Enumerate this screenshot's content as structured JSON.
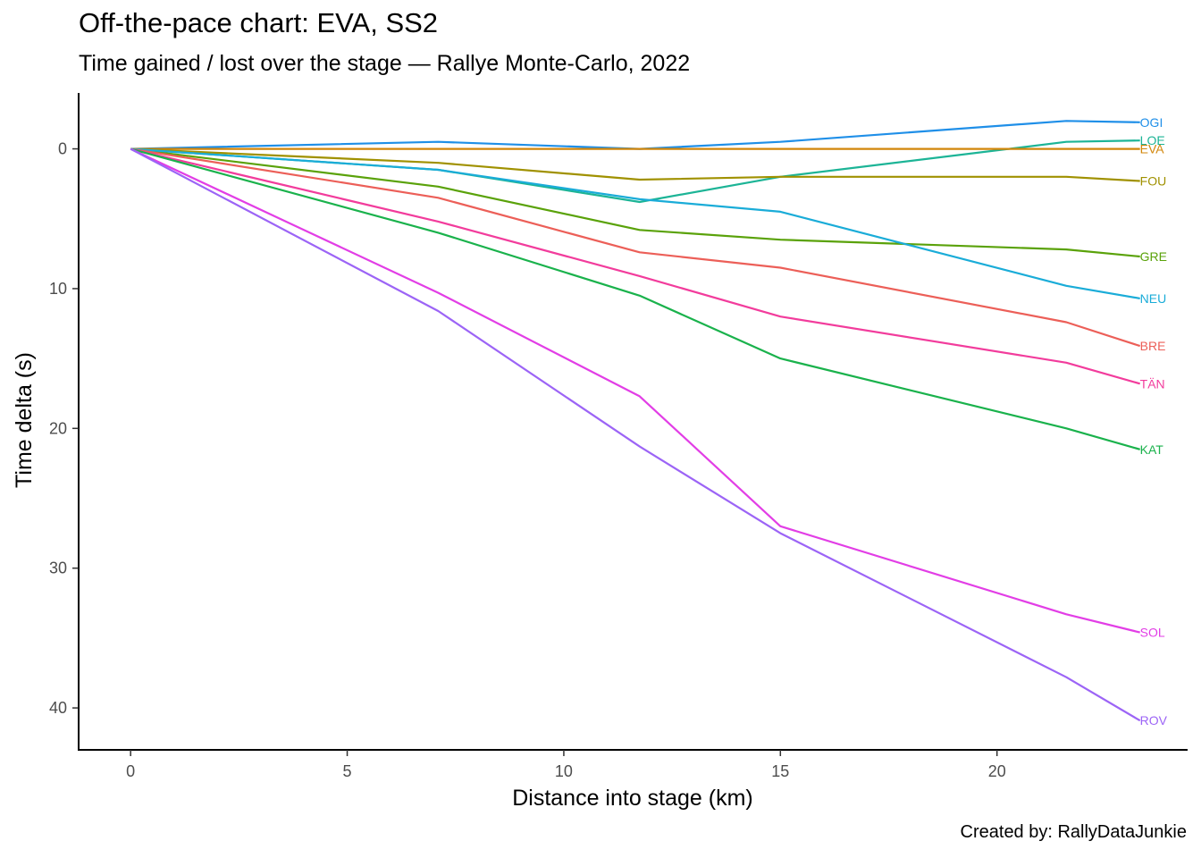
{
  "chart_data": {
    "type": "line",
    "title": "Off-the-pace chart: EVA, SS2",
    "subtitle": "Time gained / lost over the stage — Rallye Monte-Carlo, 2022",
    "caption": "Created by: RallyDataJunkie",
    "xlabel": "Distance into stage (km)",
    "ylabel": "Time delta (s)",
    "xlim": [
      -1.2,
      24.4
    ],
    "ylim": [
      -4.0,
      43.0
    ],
    "y_reversed": true,
    "x_ticks": [
      "0",
      "5",
      "10",
      "15",
      "20"
    ],
    "y_ticks": [
      "0",
      "10",
      "20",
      "30",
      "40"
    ],
    "grid": false,
    "legend": "direct labels at line ends",
    "x": [
      0,
      7.1,
      11.75,
      15.0,
      21.6,
      23.3
    ],
    "series": [
      {
        "name": "OGI",
        "color": "#1f8fe8",
        "values": [
          0,
          -0.5,
          0,
          -0.5,
          -2.0,
          -1.9
        ]
      },
      {
        "name": "LOE",
        "color": "#1cb496",
        "values": [
          0,
          1.5,
          3.8,
          2.0,
          -0.5,
          -0.6
        ]
      },
      {
        "name": "EVA",
        "color": "#d2860a",
        "values": [
          0,
          0,
          0,
          0,
          0,
          0
        ]
      },
      {
        "name": "FOU",
        "color": "#a09100",
        "values": [
          0,
          1.0,
          2.2,
          2.0,
          2.0,
          2.3
        ]
      },
      {
        "name": "GRE",
        "color": "#5aa20a",
        "values": [
          0,
          2.7,
          5.8,
          6.5,
          7.2,
          7.7
        ]
      },
      {
        "name": "NEU",
        "color": "#1aacd8",
        "values": [
          0,
          1.5,
          3.6,
          4.5,
          9.8,
          10.7
        ]
      },
      {
        "name": "BRE",
        "color": "#ec5f58",
        "values": [
          0,
          3.5,
          7.4,
          8.5,
          12.4,
          14.1
        ]
      },
      {
        "name": "TÄN",
        "color": "#f23c9c",
        "values": [
          0,
          5.2,
          9.1,
          12.0,
          15.3,
          16.8
        ]
      },
      {
        "name": "KAT",
        "color": "#1ab24c",
        "values": [
          0,
          6.0,
          10.5,
          15.0,
          20.0,
          21.5
        ]
      },
      {
        "name": "SOL",
        "color": "#e23ee6",
        "values": [
          0,
          10.3,
          17.7,
          27.0,
          33.3,
          34.6
        ]
      },
      {
        "name": "ROV",
        "color": "#9c64f6",
        "values": [
          0,
          11.6,
          21.3,
          27.5,
          37.8,
          40.9
        ]
      }
    ]
  }
}
